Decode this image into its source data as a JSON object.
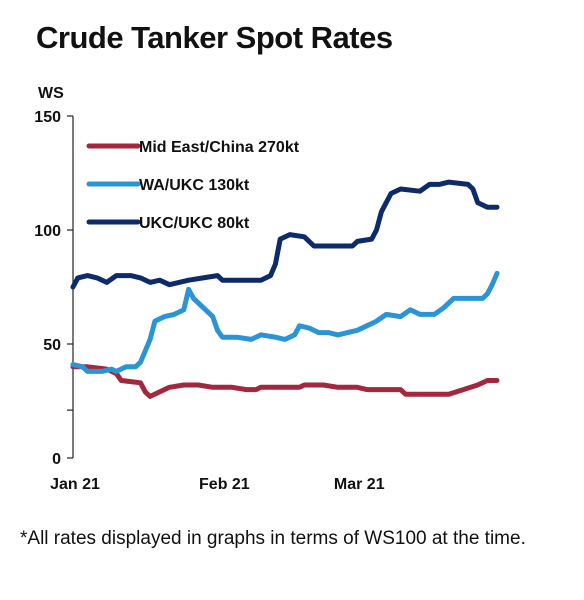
{
  "chart_data": {
    "type": "line",
    "title": "Crude Tanker Spot Rates",
    "ylabel": "WS",
    "xlabel": "",
    "ylim": [
      0,
      150
    ],
    "yticks": [
      0,
      50,
      100,
      150
    ],
    "xlim": [
      "2021-01-01",
      "2021-03-30"
    ],
    "xticks": [
      {
        "label": "Jan 21",
        "date": "2021-01-01"
      },
      {
        "label": "Feb 21",
        "date": "2021-02-01"
      },
      {
        "label": "Mar 21",
        "date": "2021-03-01"
      }
    ],
    "grid": false,
    "legend": "top-left",
    "footnote": "*All rates displayed in graphs in terms of WS100 at the time.",
    "series": [
      {
        "name": "Mid East/China 270kt",
        "color": "#a3283e",
        "points": [
          [
            "2021-01-01",
            40
          ],
          [
            "2021-01-04",
            40
          ],
          [
            "2021-01-08",
            39
          ],
          [
            "2021-01-10",
            37
          ],
          [
            "2021-01-11",
            34
          ],
          [
            "2021-01-15",
            33
          ],
          [
            "2021-01-16",
            29
          ],
          [
            "2021-01-17",
            27
          ],
          [
            "2021-01-19",
            29
          ],
          [
            "2021-01-21",
            31
          ],
          [
            "2021-01-24",
            32
          ],
          [
            "2021-01-27",
            32
          ],
          [
            "2021-01-30",
            31
          ],
          [
            "2021-02-03",
            31
          ],
          [
            "2021-02-06",
            30
          ],
          [
            "2021-02-08",
            30
          ],
          [
            "2021-02-09",
            31
          ],
          [
            "2021-02-13",
            31
          ],
          [
            "2021-02-17",
            31
          ],
          [
            "2021-02-18",
            32
          ],
          [
            "2021-02-22",
            32
          ],
          [
            "2021-02-25",
            31
          ],
          [
            "2021-03-01",
            31
          ],
          [
            "2021-03-03",
            30
          ],
          [
            "2021-03-07",
            30
          ],
          [
            "2021-03-10",
            30
          ],
          [
            "2021-03-11",
            28
          ],
          [
            "2021-03-16",
            28
          ],
          [
            "2021-03-20",
            28
          ],
          [
            "2021-03-23",
            30
          ],
          [
            "2021-03-26",
            32
          ],
          [
            "2021-03-28",
            34
          ],
          [
            "2021-03-30",
            34
          ]
        ]
      },
      {
        "name": "WA/UKC 130kt",
        "color": "#2a94d6",
        "points": [
          [
            "2021-01-01",
            41
          ],
          [
            "2021-01-03",
            40
          ],
          [
            "2021-01-04",
            38
          ],
          [
            "2021-01-07",
            38
          ],
          [
            "2021-01-09",
            39
          ],
          [
            "2021-01-10",
            38
          ],
          [
            "2021-01-12",
            40
          ],
          [
            "2021-01-14",
            40
          ],
          [
            "2021-01-15",
            42
          ],
          [
            "2021-01-17",
            52
          ],
          [
            "2021-01-18",
            60
          ],
          [
            "2021-01-19",
            61
          ],
          [
            "2021-01-20",
            62
          ],
          [
            "2021-01-22",
            63
          ],
          [
            "2021-01-24",
            65
          ],
          [
            "2021-01-25",
            74
          ],
          [
            "2021-01-26",
            70
          ],
          [
            "2021-01-28",
            66
          ],
          [
            "2021-01-30",
            62
          ],
          [
            "2021-01-31",
            56
          ],
          [
            "2021-02-01",
            53
          ],
          [
            "2021-02-04",
            53
          ],
          [
            "2021-02-07",
            52
          ],
          [
            "2021-02-09",
            54
          ],
          [
            "2021-02-12",
            53
          ],
          [
            "2021-02-14",
            52
          ],
          [
            "2021-02-16",
            54
          ],
          [
            "2021-02-17",
            58
          ],
          [
            "2021-02-19",
            57
          ],
          [
            "2021-02-21",
            55
          ],
          [
            "2021-02-23",
            55
          ],
          [
            "2021-02-25",
            54
          ],
          [
            "2021-02-27",
            55
          ],
          [
            "2021-03-01",
            56
          ],
          [
            "2021-03-03",
            58
          ],
          [
            "2021-03-05",
            60
          ],
          [
            "2021-03-07",
            63
          ],
          [
            "2021-03-10",
            62
          ],
          [
            "2021-03-12",
            65
          ],
          [
            "2021-03-14",
            63
          ],
          [
            "2021-03-17",
            63
          ],
          [
            "2021-03-19",
            66
          ],
          [
            "2021-03-21",
            70
          ],
          [
            "2021-03-24",
            70
          ],
          [
            "2021-03-27",
            70
          ],
          [
            "2021-03-28",
            72
          ],
          [
            "2021-03-29",
            76
          ],
          [
            "2021-03-30",
            81
          ]
        ]
      },
      {
        "name": "UKC/UKC 80kt",
        "color": "#0d2b6b",
        "points": [
          [
            "2021-01-01",
            75
          ],
          [
            "2021-01-02",
            79
          ],
          [
            "2021-01-04",
            80
          ],
          [
            "2021-01-06",
            79
          ],
          [
            "2021-01-08",
            77
          ],
          [
            "2021-01-10",
            80
          ],
          [
            "2021-01-13",
            80
          ],
          [
            "2021-01-15",
            79
          ],
          [
            "2021-01-17",
            77
          ],
          [
            "2021-01-19",
            78
          ],
          [
            "2021-01-21",
            76
          ],
          [
            "2021-01-23",
            77
          ],
          [
            "2021-01-25",
            78
          ],
          [
            "2021-01-28",
            79
          ],
          [
            "2021-01-31",
            80
          ],
          [
            "2021-02-01",
            78
          ],
          [
            "2021-02-05",
            78
          ],
          [
            "2021-02-09",
            78
          ],
          [
            "2021-02-11",
            80
          ],
          [
            "2021-02-12",
            85
          ],
          [
            "2021-02-13",
            96
          ],
          [
            "2021-02-15",
            98
          ],
          [
            "2021-02-18",
            97
          ],
          [
            "2021-02-20",
            93
          ],
          [
            "2021-02-24",
            93
          ],
          [
            "2021-02-28",
            93
          ],
          [
            "2021-03-01",
            95
          ],
          [
            "2021-03-04",
            96
          ],
          [
            "2021-03-05",
            100
          ],
          [
            "2021-03-06",
            108
          ],
          [
            "2021-03-08",
            116
          ],
          [
            "2021-03-10",
            118
          ],
          [
            "2021-03-14",
            117
          ],
          [
            "2021-03-16",
            120
          ],
          [
            "2021-03-18",
            120
          ],
          [
            "2021-03-20",
            121
          ],
          [
            "2021-03-24",
            120
          ],
          [
            "2021-03-25",
            118
          ],
          [
            "2021-03-26",
            112
          ],
          [
            "2021-03-28",
            110
          ],
          [
            "2021-03-30",
            110
          ]
        ]
      }
    ]
  }
}
